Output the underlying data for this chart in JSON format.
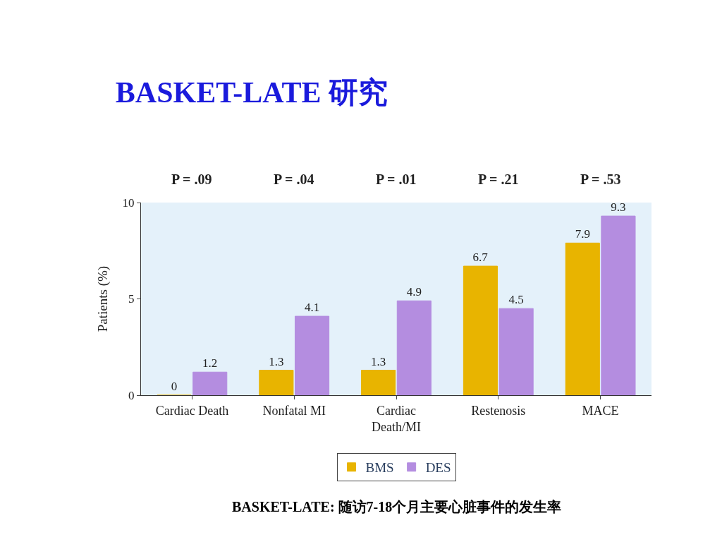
{
  "chart_data": {
    "type": "bar",
    "title": "BASKET-LATE 研究",
    "ylabel": "Patients (%)",
    "categories": [
      "Cardiac Death",
      "Nonfatal MI",
      "Cardiac Death/MI",
      "Restenosis",
      "MACE"
    ],
    "series": [
      {
        "name": "BMS",
        "color": "#e8b400",
        "values": [
          0,
          1.3,
          1.3,
          6.7,
          7.9
        ]
      },
      {
        "name": "DES",
        "color": "#b48de0",
        "values": [
          1.2,
          4.1,
          4.9,
          4.5,
          9.3
        ]
      }
    ],
    "ylim": [
      0,
      10
    ],
    "yticks": [
      0,
      5,
      10
    ],
    "data_labels": true,
    "grid": false,
    "legend": "bottom",
    "annotations": [
      "P = .09",
      "P = .04",
      "P = .01",
      "P = .21",
      "P = .53",
      "BASKET-LATE: 随访7-18个月主要心脏事件的发生率"
    ]
  }
}
